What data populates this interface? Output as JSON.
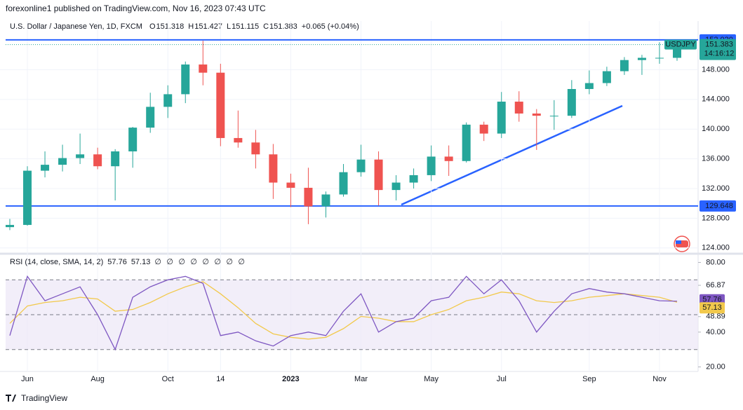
{
  "header": {
    "publisher": "forexonline1 published on TradingView.com, Nov 16, 2023 07:43 UTC",
    "symbol": "U.S. Dollar / Japanese Yen, 1D, FXCM",
    "ohlc": [
      {
        "label": "O",
        "value": "151.318"
      },
      {
        "label": "H",
        "value": "151.427"
      },
      {
        "label": "L",
        "value": "151.115"
      },
      {
        "label": "C",
        "value": "151.383"
      }
    ],
    "change": "+0.065 (+0.04%)",
    "ticker": "USDJPY",
    "countdown": "14:16:12"
  },
  "chart_data": [
    {
      "type": "candlestick",
      "categories": [
        null,
        "Jun",
        null,
        null,
        null,
        "Aug",
        null,
        null,
        null,
        "Oct",
        null,
        null,
        "14",
        null,
        null,
        null,
        "2023",
        null,
        null,
        null,
        "Mar",
        null,
        null,
        null,
        "May",
        null,
        null,
        null,
        "Jul",
        null,
        null,
        null,
        null,
        "Sep",
        null,
        null,
        null,
        "Nov",
        null
      ],
      "open": [
        126.8,
        127.1,
        134.4,
        135.2,
        136.1,
        136.6,
        135.0,
        137.0,
        140.2,
        143.0,
        144.7,
        148.7,
        147.6,
        138.8,
        138.2,
        136.6,
        132.8,
        132.1,
        129.6,
        131.2,
        134.2,
        135.9,
        131.8,
        132.8,
        133.8,
        136.3,
        135.7,
        140.6,
        139.4,
        143.7,
        142.1,
        141.8,
        141.8,
        145.4,
        146.2,
        147.8,
        149.3,
        149.6,
        149.6
      ],
      "high": [
        127.9,
        135.0,
        137.0,
        137.9,
        139.4,
        137.5,
        137.3,
        140.3,
        144.9,
        145.9,
        149.1,
        151.9,
        148.8,
        142.5,
        139.9,
        138.0,
        134.0,
        134.8,
        131.6,
        135.3,
        137.9,
        137.0,
        133.8,
        134.7,
        137.8,
        137.8,
        140.9,
        141.0,
        145.0,
        145.1,
        142.7,
        143.9,
        146.6,
        147.9,
        148.4,
        149.7,
        150.0,
        151.7,
        151.9
      ],
      "low": [
        126.4,
        127.0,
        133.5,
        134.3,
        135.3,
        134.6,
        130.4,
        134.8,
        139.5,
        141.5,
        143.5,
        145.9,
        137.7,
        137.5,
        134.7,
        130.6,
        129.5,
        127.2,
        128.1,
        130.9,
        133.6,
        129.7,
        130.4,
        132.0,
        133.0,
        133.7,
        135.5,
        138.4,
        138.8,
        141.0,
        137.2,
        139.9,
        141.5,
        144.7,
        145.8,
        147.3,
        147.3,
        148.8,
        149.2
      ],
      "close": [
        127.1,
        134.4,
        135.2,
        136.1,
        136.6,
        135.0,
        137.0,
        140.2,
        143.0,
        144.7,
        148.7,
        147.6,
        138.8,
        138.2,
        136.6,
        132.8,
        132.1,
        129.6,
        131.2,
        134.2,
        135.9,
        131.8,
        132.8,
        133.8,
        136.3,
        135.7,
        140.6,
        139.4,
        143.7,
        142.1,
        141.8,
        141.8,
        145.4,
        146.2,
        147.8,
        149.3,
        149.6,
        149.6,
        151.383
      ],
      "up_color": "#26a69a",
      "down_color": "#ef5350",
      "ylim": [
        123.6,
        153.8
      ],
      "yticks": [
        {
          "value": 124,
          "label": "124.000"
        },
        {
          "value": 128,
          "label": "128.000"
        },
        {
          "value": 132,
          "label": "132.000"
        },
        {
          "value": 136,
          "label": "136.000"
        },
        {
          "value": 140,
          "label": "140.000"
        },
        {
          "value": 144,
          "label": "144.000"
        },
        {
          "value": 148,
          "label": "148.000"
        }
      ],
      "hlines": [
        {
          "value": 152.02,
          "label": "152.020",
          "color": "#2962ff"
        },
        {
          "value": 129.648,
          "label": "129.648",
          "color": "#2962ff"
        }
      ],
      "grid": true
    },
    {
      "type": "line",
      "title": "RSI (14, close, SMA, 14, 2)",
      "markers": [
        "∅",
        "∅",
        "∅",
        "∅",
        "∅",
        "∅",
        "∅",
        "∅"
      ],
      "series": [
        {
          "name": "RSI",
          "color": "#7e57c2",
          "values": [
            38,
            72,
            58,
            62,
            66,
            50,
            30,
            60,
            66,
            70,
            72,
            68,
            38,
            40,
            35,
            32,
            38,
            40,
            38,
            52,
            62,
            40,
            46,
            48,
            58,
            60,
            72,
            62,
            70,
            58,
            40,
            52,
            62,
            65,
            63,
            62,
            60,
            58,
            57.76
          ]
        },
        {
          "name": "SMA",
          "color": "#f2c94c",
          "values": [
            45,
            55,
            57,
            58,
            60,
            59,
            52,
            53,
            57,
            62,
            66,
            69,
            62,
            54,
            45,
            39,
            37,
            36,
            37,
            42,
            49,
            48,
            46,
            46,
            50,
            53,
            58,
            60,
            63,
            62,
            58,
            57,
            58,
            60,
            61,
            62,
            61,
            60,
            57.13
          ]
        }
      ],
      "ylim": [
        17,
        83
      ],
      "yticks": [
        {
          "value": 20,
          "label": "20.00"
        },
        {
          "value": 40,
          "label": "40.00"
        },
        48.89,
        66.87,
        {
          "value": 80,
          "label": "80.00"
        }
      ],
      "bands": [
        30,
        50,
        70
      ],
      "band_color": "#ede7f6"
    }
  ],
  "footer": "TradingView"
}
